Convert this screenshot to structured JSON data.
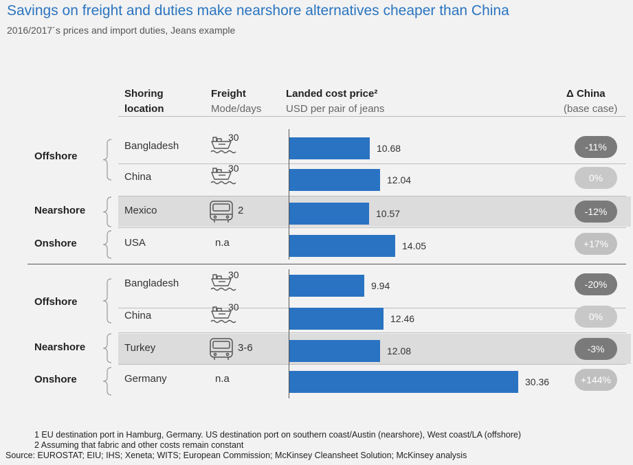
{
  "title": "Savings on freight and duties make nearshore alternatives cheaper than China",
  "subtitle": "2016/2017´s prices and import duties, Jeans example",
  "headers": {
    "location_line1": "Shoring",
    "location_line2": "location",
    "freight_line1": "Freight",
    "freight_line2": "Mode/days",
    "landed_line1": "Landed cost price²",
    "landed_line2": "USD per pair of jeans",
    "delta_line1": "Δ China",
    "delta_line2": "(base case)"
  },
  "colors": {
    "bar": "#2a73c2",
    "title": "#2a74c0",
    "highlight": "#dcdcdc"
  },
  "groups": [
    {
      "label": "Offshore"
    },
    {
      "label": "Nearshore"
    },
    {
      "label": "Onshore"
    },
    {
      "label": "Offshore"
    },
    {
      "label": "Nearshore"
    },
    {
      "label": "Onshore"
    }
  ],
  "rows": [
    {
      "location": "Bangladesh",
      "mode_icon": "ship-icon",
      "days": "30",
      "delta": "-11%"
    },
    {
      "location": "China",
      "mode_icon": "ship-icon",
      "days": "30",
      "delta": "0%"
    },
    {
      "location": "Mexico",
      "mode_icon": "truck-icon",
      "days": "2",
      "delta": "-12%"
    },
    {
      "location": "USA",
      "mode_icon": "",
      "days": "n.a",
      "delta": "+17%"
    },
    {
      "location": "Bangladesh",
      "mode_icon": "ship-icon",
      "days": "30",
      "delta": "-20%"
    },
    {
      "location": "China",
      "mode_icon": "ship-icon",
      "days": "30",
      "delta": "0%"
    },
    {
      "location": "Turkey",
      "mode_icon": "truck-icon",
      "days": "3-6",
      "delta": "-3%"
    },
    {
      "location": "Germany",
      "mode_icon": "",
      "days": "n.a",
      "delta": "+144%"
    }
  ],
  "chart_data": {
    "type": "bar",
    "orientation": "horizontal",
    "categories": [
      "Bangladesh",
      "China",
      "Mexico",
      "USA",
      "Bangladesh",
      "China",
      "Turkey",
      "Germany"
    ],
    "values": [
      10.68,
      12.04,
      10.57,
      14.05,
      9.94,
      12.46,
      12.08,
      30.36
    ],
    "value_labels": [
      "10.68",
      "12.04",
      "10.57",
      "14.05",
      "9.94",
      "12.46",
      "12.08",
      "30.36"
    ],
    "xlim": [
      0,
      30.36
    ],
    "grid": false,
    "legend": "none"
  },
  "footnotes": [
    "1  EU destination port in Hamburg, Germany. US destination port on southern coast/Austin (nearshore), West coast/LA (offshore)",
    "2  Assuming that fabric and other costs remain constant"
  ],
  "source": "Source:  EUROSTAT; EIU; IHS; Xeneta; WITS; European Commission; McKinsey Cleansheet Solution; McKinsey analysis"
}
